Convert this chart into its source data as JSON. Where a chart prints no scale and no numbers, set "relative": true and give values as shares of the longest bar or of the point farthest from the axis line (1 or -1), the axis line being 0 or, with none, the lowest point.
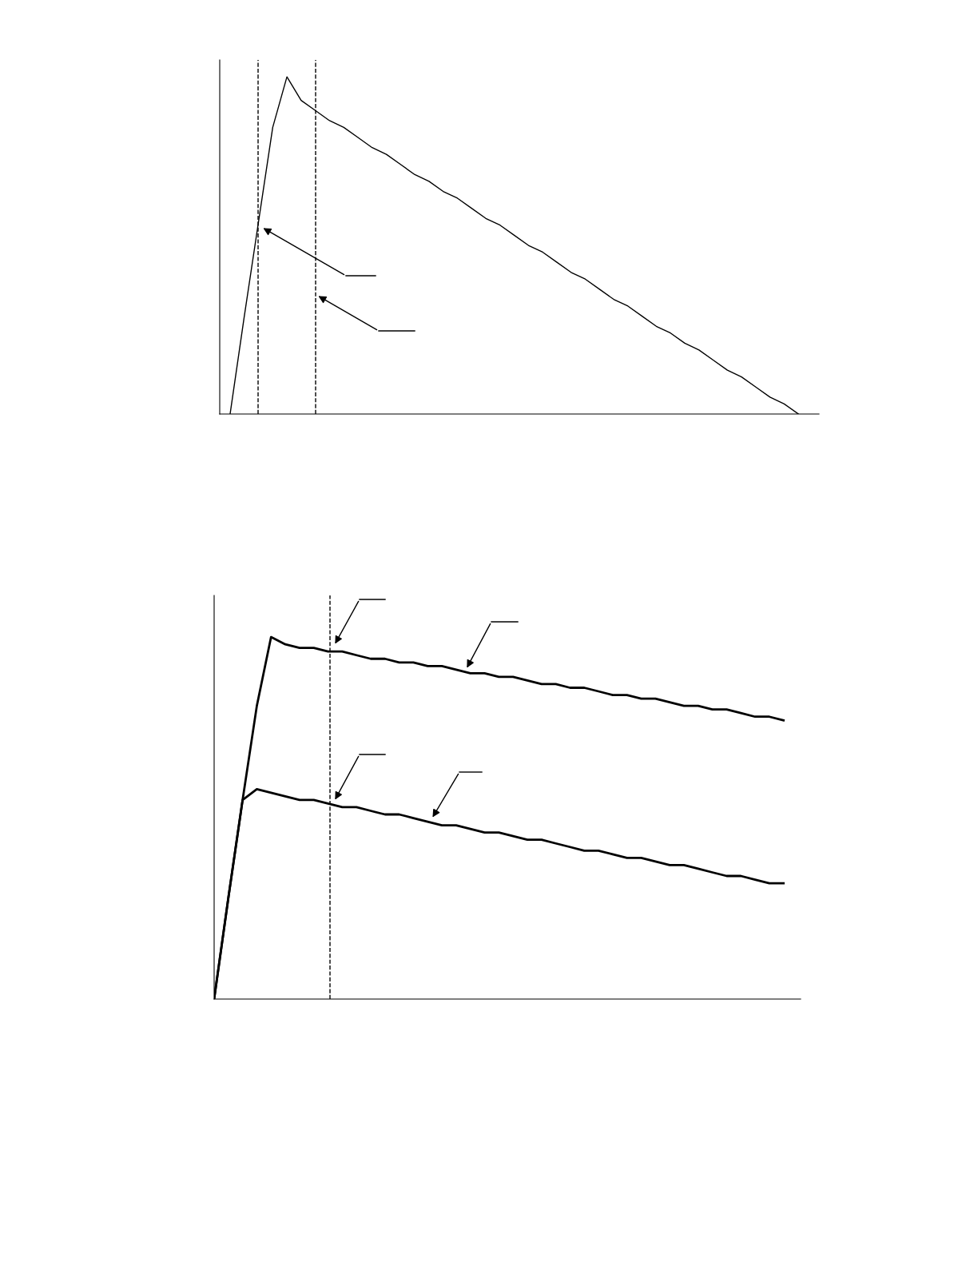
{
  "chart_data": [
    {
      "type": "line",
      "relative": true,
      "categories": [
        null,
        null,
        null,
        null,
        null,
        null,
        null,
        null,
        null,
        null,
        null,
        null,
        null,
        null,
        null,
        null,
        null,
        null,
        null,
        null,
        null,
        null,
        null,
        null,
        null,
        null,
        null,
        null,
        null,
        null,
        null,
        null,
        null,
        null,
        null,
        null,
        null,
        null,
        null,
        null,
        null
      ],
      "series": [
        {
          "color": "#000000",
          "values": [
            0,
            0.29,
            0.57,
            0.85,
            1.0,
            0.93,
            0.9,
            0.87,
            0.85,
            0.82,
            0.79,
            0.77,
            0.74,
            0.71,
            0.69,
            0.66,
            0.64,
            0.61,
            0.58,
            0.56,
            0.53,
            0.5,
            0.48,
            0.45,
            0.42,
            0.4,
            0.37,
            0.34,
            0.32,
            0.29,
            0.26,
            0.24,
            0.21,
            0.19,
            0.16,
            0.13,
            0.11,
            0.08,
            0.05,
            0.03,
            0.0
          ]
        }
      ],
      "marker": "none",
      "line_style": "solid"
    },
    {
      "type": "line",
      "relative": true,
      "categories": [
        null,
        null,
        null,
        null,
        null,
        null,
        null,
        null,
        null,
        null,
        null,
        null,
        null,
        null,
        null,
        null,
        null,
        null,
        null,
        null,
        null,
        null,
        null,
        null,
        null,
        null,
        null,
        null,
        null,
        null,
        null,
        null,
        null,
        null,
        null,
        null,
        null,
        null,
        null,
        null,
        null
      ],
      "series": [
        {
          "color": "#000000",
          "values": [
            0,
            0.28,
            0.55,
            0.81,
            1.0,
            0.98,
            0.97,
            0.97,
            0.96,
            0.96,
            0.95,
            0.94,
            0.94,
            0.93,
            0.93,
            0.92,
            0.92,
            0.91,
            0.9,
            0.9,
            0.89,
            0.89,
            0.88,
            0.87,
            0.87,
            0.86,
            0.86,
            0.85,
            0.84,
            0.84,
            0.83,
            0.83,
            0.82,
            0.81,
            0.81,
            0.8,
            0.8,
            0.79,
            0.78,
            0.78,
            0.77
          ]
        },
        {
          "color": "#000000",
          "values": [
            0,
            0.28,
            0.55,
            0.58,
            0.57,
            0.56,
            0.55,
            0.55,
            0.54,
            0.53,
            0.53,
            0.52,
            0.51,
            0.51,
            0.5,
            0.49,
            0.48,
            0.48,
            0.47,
            0.46,
            0.46,
            0.45,
            0.44,
            0.44,
            0.43,
            0.42,
            0.41,
            0.41,
            0.4,
            0.39,
            0.39,
            0.38,
            0.37,
            0.37,
            0.36,
            0.35,
            0.34,
            0.34,
            0.33,
            0.32,
            0.32
          ]
        }
      ],
      "marker": "none",
      "line_style": "solid"
    }
  ]
}
